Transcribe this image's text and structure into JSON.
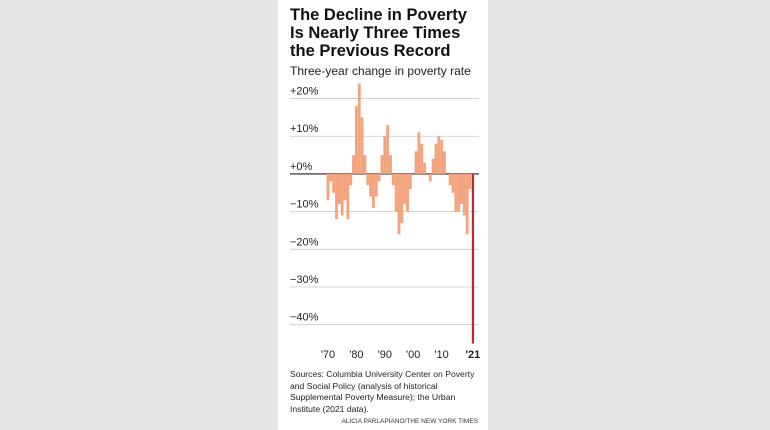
{
  "chart_data": {
    "type": "bar",
    "title": "The Decline in Poverty Is Nearly Three Times the Previous Record",
    "subtitle": "Three-year change in poverty rate",
    "categories": [
      "'70",
      null,
      null,
      null,
      null,
      null,
      null,
      null,
      null,
      null,
      "'80",
      null,
      null,
      null,
      null,
      null,
      null,
      null,
      null,
      null,
      "'90",
      null,
      null,
      null,
      null,
      null,
      null,
      null,
      null,
      null,
      "'00",
      null,
      null,
      null,
      null,
      null,
      null,
      null,
      null,
      null,
      "'10",
      null,
      null,
      null,
      null,
      null,
      null,
      null,
      null,
      null,
      null,
      "'21"
    ],
    "values": [
      -7,
      -2,
      -5,
      -12,
      -8,
      -11,
      -7,
      -12,
      -3,
      5,
      18,
      24,
      15,
      5,
      -3,
      -6,
      -9,
      -6,
      -2,
      5,
      10,
      13,
      5,
      -3,
      -10,
      -16,
      -13,
      -8,
      -10,
      -4,
      0,
      6,
      11,
      8,
      3,
      0,
      -2,
      4,
      8,
      10,
      9,
      6,
      0,
      -3,
      -5,
      -10,
      -10,
      -8,
      -11,
      -16,
      -4,
      -45
    ],
    "color": "#f3a47c",
    "highlight_color": "#c1272d",
    "ylim": [
      -46,
      25
    ],
    "yticks": [
      {
        "value": 20,
        "label": "+20%"
      },
      {
        "value": 10,
        "label": "+10%"
      },
      {
        "value": 0,
        "label": "+0%"
      },
      {
        "value": -10,
        "label": "−10%"
      },
      {
        "value": -20,
        "label": "−20%"
      },
      {
        "value": -30,
        "label": "−30%"
      },
      {
        "value": -40,
        "label": "−40%"
      }
    ],
    "grid": true,
    "source": "Sources: Columbia University Center on Poverty and Social Policy (analysis of historical Supplemental Poverty Measure); the Urban Institute (2021 data).",
    "credit": "ALICIA PARLAPIANO/THE NEW YORK TIMES"
  }
}
